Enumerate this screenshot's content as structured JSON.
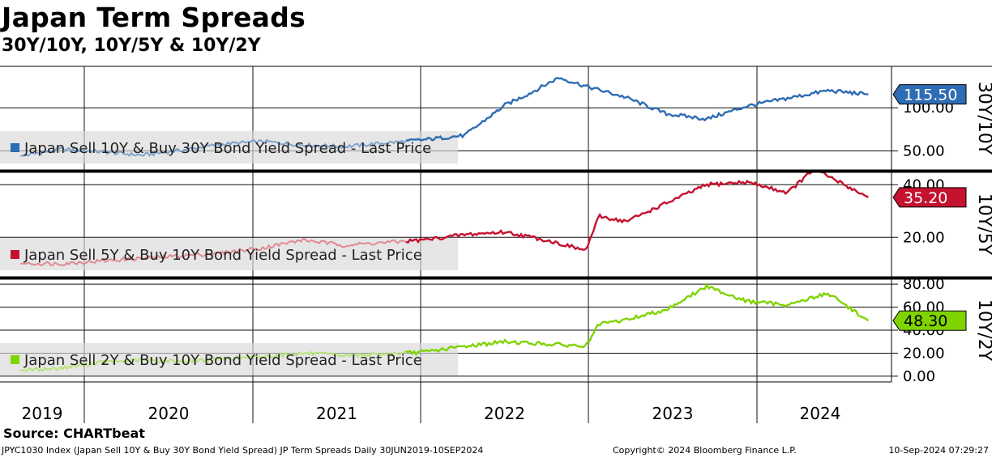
{
  "header": {
    "title": "Japan Term Spreads",
    "subtitle": "30Y/10Y, 10Y/5Y & 10Y/2Y"
  },
  "footer": {
    "source": "Source: CHARTbeat",
    "description": "JPYC1030 Index (Japan Sell 10Y & Buy 30Y Bond Yield Spread) JP Term Spreads  Daily 30JUN2019-10SEP2024",
    "copyright": "Copyright© 2024 Bloomberg Finance L.P.",
    "timestamp": "10-Sep-2024 07:29:27"
  },
  "chart_data": [
    {
      "type": "line",
      "panel": "top",
      "axis_title": "30Y/10Y",
      "legend": "Japan Sell 10Y & Buy 30Y Bond Yield Spread - Last Price",
      "last_value": "115.50",
      "color": "#2e6cb4",
      "faded_color": "#7ea3cc",
      "ylim": [
        28,
        148
      ],
      "y_ticks": [
        "50.00",
        "100.00"
      ],
      "grid": true,
      "x": [
        "2019-06",
        "2019-09",
        "2019-12",
        "2020-03",
        "2020-06",
        "2020-09",
        "2020-12",
        "2021-03",
        "2021-06",
        "2021-09",
        "2021-12",
        "2022-03",
        "2022-06",
        "2022-08",
        "2022-10",
        "2022-12",
        "2023-03",
        "2023-06",
        "2023-09",
        "2023-12",
        "2024-03",
        "2024-06",
        "2024-09"
      ],
      "values": [
        44,
        52,
        49,
        45,
        51,
        58,
        61,
        57,
        55,
        59,
        63,
        68,
        103,
        118,
        135,
        125,
        112,
        93,
        87,
        102,
        111,
        120,
        115.5
      ]
    },
    {
      "type": "line",
      "panel": "middle",
      "axis_title": "10Y/5Y",
      "legend": "Japan Sell 5Y & Buy 10Y Bond Yield Spread - Last Price",
      "last_value": "35.20",
      "color": "#c4122f",
      "faded_color": "#e08a92",
      "ylim": [
        5,
        45
      ],
      "y_ticks": [
        "20.00",
        "40.00"
      ],
      "grid": true,
      "x": [
        "2019-06",
        "2019-09",
        "2019-12",
        "2020-03",
        "2020-06",
        "2020-09",
        "2020-12",
        "2021-03",
        "2021-06",
        "2021-09",
        "2021-12",
        "2022-03",
        "2022-06",
        "2022-09",
        "2022-12",
        "2023-01",
        "2023-03",
        "2023-06",
        "2023-09",
        "2023-12",
        "2024-03",
        "2024-05",
        "2024-09"
      ],
      "values": [
        10,
        10,
        11,
        12,
        13,
        14,
        16,
        19,
        17,
        18,
        19,
        21,
        22,
        19,
        15,
        28,
        26,
        33,
        40,
        41,
        37,
        46,
        35.2
      ]
    },
    {
      "type": "line",
      "panel": "bottom",
      "axis_title": "10Y/2Y",
      "legend": "Japan Sell 2Y & Buy 10Y Bond Yield Spread - Last Price",
      "last_value": "48.30",
      "color": "#7fd400",
      "faded_color": "#b8e47a",
      "ylim": [
        -5,
        85
      ],
      "y_ticks": [
        "0.00",
        "20.00",
        "40.00",
        "60.00",
        "80.00"
      ],
      "grid": true,
      "x": [
        "2019-06",
        "2019-09",
        "2019-12",
        "2020-03",
        "2020-06",
        "2020-09",
        "2020-12",
        "2021-03",
        "2021-06",
        "2021-09",
        "2021-12",
        "2022-03",
        "2022-06",
        "2022-09",
        "2022-12",
        "2023-01",
        "2023-03",
        "2023-06",
        "2023-09",
        "2023-12",
        "2024-03",
        "2024-06",
        "2024-09"
      ],
      "values": [
        5,
        7,
        12,
        14,
        13,
        15,
        17,
        20,
        18,
        19,
        21,
        26,
        30,
        28,
        26,
        45,
        49,
        58,
        78,
        65,
        62,
        72,
        48.3
      ]
    }
  ],
  "x_axis": {
    "years": [
      "2019",
      "2020",
      "2021",
      "2022",
      "2023",
      "2024"
    ]
  }
}
